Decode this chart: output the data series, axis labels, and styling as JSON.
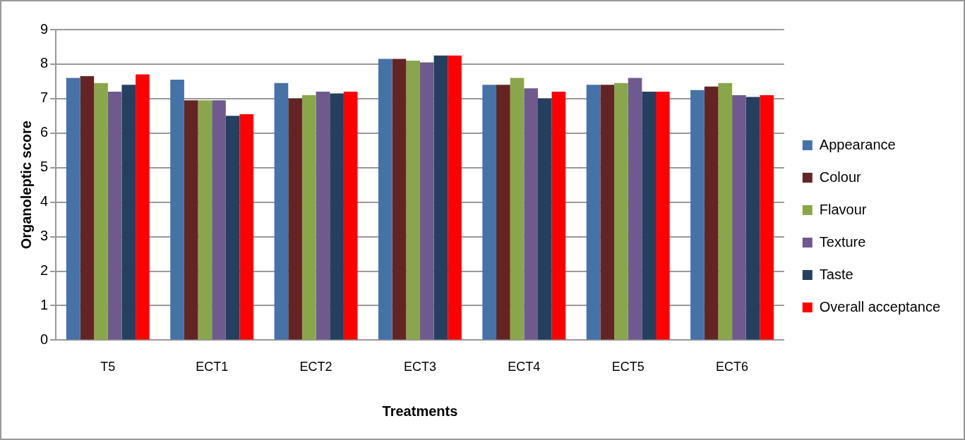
{
  "chart_data": {
    "type": "bar",
    "xlabel": "Treatments",
    "ylabel": "Organoleptic score",
    "categories": [
      "T5",
      "ECT1",
      "ECT2",
      "ECT3",
      "ECT4",
      "ECT5",
      "ECT6"
    ],
    "series": [
      {
        "name": "Appearance",
        "color": "#4572a7",
        "values": [
          7.6,
          7.55,
          7.45,
          8.15,
          7.4,
          7.4,
          7.25
        ]
      },
      {
        "name": "Colour",
        "color": "#632523",
        "values": [
          7.65,
          6.95,
          7.0,
          8.15,
          7.4,
          7.4,
          7.35
        ]
      },
      {
        "name": "Flavour",
        "color": "#8aa64a",
        "values": [
          7.45,
          6.95,
          7.1,
          8.1,
          7.6,
          7.45,
          7.45
        ]
      },
      {
        "name": "Texture",
        "color": "#6f5a8f",
        "values": [
          7.2,
          6.95,
          7.2,
          8.05,
          7.3,
          7.6,
          7.1
        ]
      },
      {
        "name": "Taste",
        "color": "#243f60",
        "values": [
          7.4,
          6.5,
          7.15,
          8.25,
          7.0,
          7.2,
          7.05
        ]
      },
      {
        "name": "Overall acceptance",
        "color": "#ff0000",
        "values": [
          7.7,
          6.55,
          7.2,
          8.25,
          7.2,
          7.2,
          7.1
        ]
      }
    ],
    "ylim": [
      0,
      9
    ],
    "yticks": [
      0,
      1,
      2,
      3,
      4,
      5,
      6,
      7,
      8,
      9
    ],
    "grid": "y",
    "legend": "right"
  }
}
